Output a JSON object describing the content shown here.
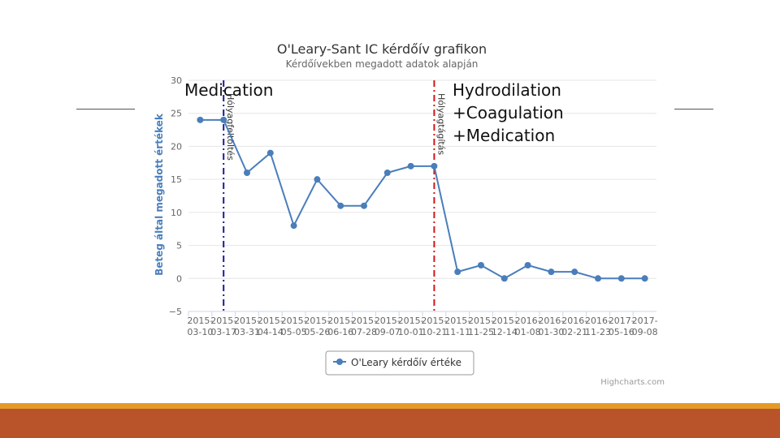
{
  "chart_data": {
    "type": "line",
    "title": "O'Leary-Sant IC kérdőív grafikon",
    "subtitle": "Kérdőívekben megadott adatok alapján",
    "xlabel": "",
    "ylabel": "Beteg által megadott értékek",
    "ylim": [
      -5,
      30
    ],
    "y_ticks": [
      "−5",
      "0",
      "5",
      "10",
      "15",
      "20",
      "25",
      "30"
    ],
    "grid": true,
    "legend_position": "bottom-center",
    "categories": [
      [
        "2015-",
        "03-10"
      ],
      [
        "2015-",
        "03-17"
      ],
      [
        "2015-",
        "03-31"
      ],
      [
        "2015-",
        "04-14"
      ],
      [
        "2015-",
        "05-05"
      ],
      [
        "2015-",
        "05-26"
      ],
      [
        "2015-",
        "06-16"
      ],
      [
        "2015-",
        "07-28"
      ],
      [
        "2015-",
        "09-07"
      ],
      [
        "2015-",
        "10-01"
      ],
      [
        "2015-",
        "10-21"
      ],
      [
        "2015-",
        "11-11"
      ],
      [
        "2015-",
        "11-25"
      ],
      [
        "2015-",
        "12-14"
      ],
      [
        "2016-",
        "01-08"
      ],
      [
        "2016-",
        "01-30"
      ],
      [
        "2016-",
        "02-21"
      ],
      [
        "2016-",
        "11-23"
      ],
      [
        "2017-",
        "05-16"
      ],
      [
        "2017-",
        "09-08"
      ]
    ],
    "series": [
      {
        "name": "O'Leary kérdőív értéke",
        "color": "#4a7ebb",
        "values": [
          24,
          24,
          16,
          19,
          8,
          15,
          11,
          11,
          16,
          17,
          17,
          1,
          2,
          0,
          2,
          1,
          1,
          0,
          0,
          0
        ]
      }
    ],
    "plot_lines": [
      {
        "label": "Hólyagfeltöltés",
        "color": "#1a1aa0",
        "after_category_index": 1
      },
      {
        "label": "Hólyagtágítás",
        "color": "#d01818",
        "after_category_index": 10
      }
    ],
    "credits": "Highcharts.com"
  },
  "annotations": {
    "medication": "Medication",
    "hydrodilation_lines": [
      "Hydrodilation",
      "+Coagulation",
      "+Medication"
    ]
  },
  "colors": {
    "footer_orange": "#e59a27",
    "footer_red": "#b9532a"
  }
}
